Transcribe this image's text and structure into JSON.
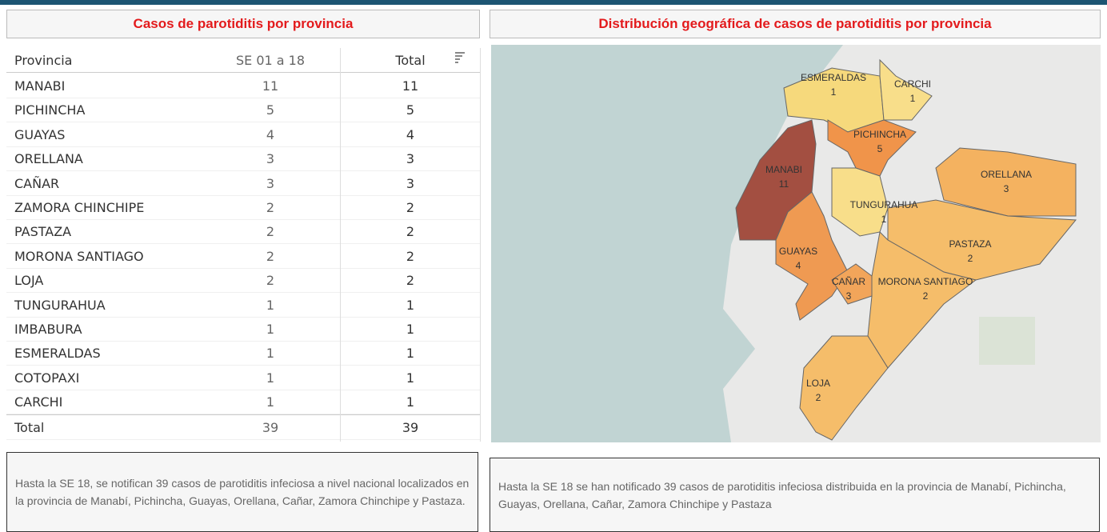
{
  "left_panel": {
    "title": "Casos de parotiditis por provincia",
    "table": {
      "headers": [
        "Provincia",
        "SE 01 a 18",
        "Total"
      ],
      "rows": [
        [
          "MANABI",
          11,
          11
        ],
        [
          "PICHINCHA",
          5,
          5
        ],
        [
          "GUAYAS",
          4,
          4
        ],
        [
          "ORELLANA",
          3,
          3
        ],
        [
          "CAÑAR",
          3,
          3
        ],
        [
          "ZAMORA CHINCHIPE",
          2,
          2
        ],
        [
          "PASTAZA",
          2,
          2
        ],
        [
          "MORONA SANTIAGO",
          2,
          2
        ],
        [
          "LOJA",
          2,
          2
        ],
        [
          "TUNGURAHUA",
          1,
          1
        ],
        [
          "IMBABURA",
          1,
          1
        ],
        [
          "ESMERALDAS",
          1,
          1
        ],
        [
          "COTOPAXI",
          1,
          1
        ],
        [
          "CARCHI",
          1,
          1
        ]
      ],
      "total": [
        "Total",
        39,
        39
      ]
    },
    "note": "Hasta la SE 18, se notifican 39 casos de parotiditis infeciosa a nivel nacional localizados en la provincia de Manabí, Pichincha,  Guayas, Orellana, Cañar, Zamora Chinchipe y Pastaza."
  },
  "right_panel": {
    "title": "Distribución geográfica de casos de parotiditis por provincia",
    "map_labels": [
      {
        "name": "ESMERALDAS",
        "value": 1
      },
      {
        "name": "CARCHI",
        "value": 1
      },
      {
        "name": "PICHINCHA",
        "value": 5
      },
      {
        "name": "MANABI",
        "value": 11
      },
      {
        "name": "ORELLANA",
        "value": 3
      },
      {
        "name": "TUNGURAHUA",
        "value": 1
      },
      {
        "name": "PASTAZA",
        "value": 2
      },
      {
        "name": "GUAYAS",
        "value": 4
      },
      {
        "name": "CAÑAR",
        "value": 3
      },
      {
        "name": "MORONA SANTIAGO",
        "value": 2
      },
      {
        "name": "LOJA",
        "value": 2
      }
    ],
    "note": "Hasta la SE 18 se han notificado 39 casos de parotiditis infeciosa distribuida en la provincia de  Manabí, Pichincha,  Guayas, Orellana, Cañar, Zamora Chinchipe y Pastaza"
  }
}
